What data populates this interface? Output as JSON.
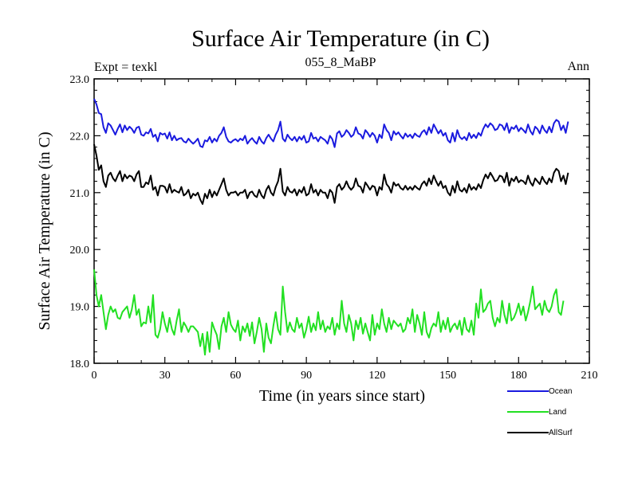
{
  "chart_data": {
    "type": "line",
    "title": "Surface Air Temperature (in C)",
    "subtitle": "055_8_MaBP",
    "left_label": "Expt = texkl",
    "right_label": "Ann",
    "xlabel": "Time (in years since start)",
    "ylabel": "Surface Air Temperature (in C)",
    "xlim": [
      0,
      210
    ],
    "ylim": [
      18.0,
      23.0
    ],
    "xticks": [
      0,
      30,
      60,
      90,
      120,
      150,
      180,
      210
    ],
    "yticks": [
      18.0,
      19.0,
      20.0,
      21.0,
      22.0,
      23.0
    ],
    "xtick_labels": [
      "0",
      "30",
      "60",
      "90",
      "120",
      "150",
      "180",
      "210"
    ],
    "ytick_labels": [
      "18.0",
      "19.0",
      "20.0",
      "21.0",
      "22.0",
      "23.0"
    ],
    "series": [
      {
        "name": "Ocean",
        "color": "#1a1adf",
        "x_start": 0,
        "x_step": 1,
        "values": [
          22.65,
          22.55,
          22.4,
          22.38,
          22.15,
          22.05,
          22.22,
          22.18,
          22.1,
          22.02,
          22.12,
          22.2,
          22.06,
          22.18,
          22.1,
          22.16,
          22.12,
          22.05,
          22.14,
          22.16,
          22.02,
          22.0,
          22.06,
          22.04,
          22.12,
          21.98,
          22.02,
          21.9,
          22.05,
          22.02,
          22.04,
          21.95,
          22.06,
          21.92,
          22.0,
          21.92,
          21.95,
          21.96,
          21.9,
          21.88,
          21.95,
          21.9,
          21.86,
          21.9,
          21.95,
          21.82,
          21.8,
          21.92,
          21.9,
          21.98,
          21.88,
          21.95,
          21.9,
          22.0,
          22.05,
          22.15,
          21.98,
          21.9,
          21.88,
          21.92,
          21.94,
          21.9,
          21.95,
          21.92,
          22.0,
          21.86,
          21.92,
          21.96,
          21.9,
          21.86,
          21.98,
          21.9,
          21.86,
          21.96,
          22.02,
          21.95,
          21.9,
          22.02,
          22.1,
          22.25,
          21.95,
          21.9,
          22.02,
          21.96,
          21.92,
          21.98,
          21.9,
          21.98,
          21.93,
          22.0,
          21.88,
          21.9,
          22.05,
          21.95,
          21.97,
          21.9,
          21.98,
          21.95,
          21.92,
          21.86,
          22.0,
          21.94,
          21.8,
          22.04,
          22.08,
          21.98,
          22.02,
          22.1,
          22.05,
          21.98,
          22.02,
          22.15,
          22.04,
          22.02,
          21.95,
          22.1,
          22.05,
          21.98,
          22.05,
          22.0,
          21.88,
          22.02,
          21.96,
          22.2,
          22.1,
          22.05,
          21.92,
          22.08,
          22.02,
          22.06,
          22.0,
          21.95,
          22.04,
          21.98,
          22.02,
          21.96,
          22.04,
          22.0,
          21.98,
          22.06,
          22.1,
          22.02,
          22.15,
          22.05,
          22.2,
          22.12,
          22.04,
          22.1,
          22.0,
          22.05,
          21.92,
          21.88,
          22.05,
          21.9,
          22.1,
          21.98,
          21.94,
          21.98,
          21.92,
          22.05,
          21.96,
          22.02,
          21.96,
          22.05,
          22.0,
          22.12,
          22.2,
          22.15,
          22.22,
          22.18,
          22.1,
          22.12,
          22.2,
          22.18,
          22.1,
          22.22,
          22.05,
          22.15,
          22.12,
          22.18,
          22.08,
          22.14,
          22.1,
          22.05,
          22.2,
          22.08,
          22.02,
          22.16,
          22.12,
          22.04,
          22.18,
          22.1,
          22.05,
          22.16,
          22.06,
          22.22,
          22.28,
          22.25,
          22.1,
          22.18,
          22.05,
          22.25
        ]
      },
      {
        "name": "Land",
        "color": "#22e022",
        "x_start": 0,
        "x_step": 1,
        "values": [
          19.65,
          19.2,
          19.0,
          19.2,
          18.9,
          18.6,
          18.85,
          19.0,
          18.9,
          18.95,
          18.8,
          18.78,
          18.9,
          18.95,
          19.0,
          18.8,
          18.95,
          19.2,
          18.85,
          18.95,
          18.65,
          18.72,
          18.7,
          19.0,
          18.72,
          19.2,
          18.5,
          18.45,
          18.6,
          18.9,
          18.7,
          18.55,
          18.8,
          18.6,
          18.5,
          18.75,
          18.95,
          18.55,
          18.72,
          18.65,
          18.55,
          18.65,
          18.65,
          18.6,
          18.55,
          18.3,
          18.52,
          18.15,
          18.55,
          18.2,
          18.72,
          18.6,
          18.5,
          18.25,
          18.65,
          18.8,
          18.55,
          18.9,
          18.68,
          18.6,
          18.55,
          18.75,
          18.4,
          18.65,
          18.55,
          18.7,
          18.48,
          18.72,
          18.35,
          18.55,
          18.8,
          18.6,
          18.2,
          18.7,
          18.45,
          18.35,
          18.65,
          18.9,
          18.6,
          18.5,
          19.35,
          18.9,
          18.55,
          18.72,
          18.6,
          18.55,
          18.8,
          18.62,
          18.7,
          18.45,
          18.6,
          18.82,
          18.55,
          18.7,
          18.58,
          18.9,
          18.6,
          18.75,
          18.55,
          18.65,
          18.6,
          18.8,
          18.5,
          18.7,
          18.6,
          19.1,
          18.7,
          18.55,
          18.85,
          18.7,
          18.4,
          18.75,
          18.6,
          18.8,
          18.52,
          18.7,
          18.55,
          18.4,
          18.85,
          18.5,
          18.7,
          18.6,
          18.95,
          18.7,
          18.55,
          18.8,
          18.6,
          18.75,
          18.7,
          18.65,
          18.7,
          18.55,
          18.6,
          18.8,
          18.7,
          18.95,
          18.55,
          18.85,
          18.7,
          18.5,
          18.9,
          18.55,
          18.45,
          18.62,
          18.7,
          18.65,
          18.9,
          18.55,
          18.75,
          18.6,
          18.8,
          18.55,
          18.65,
          18.7,
          18.6,
          18.75,
          18.5,
          18.8,
          18.6,
          18.55,
          18.75,
          18.5,
          19.05,
          18.8,
          19.3,
          18.9,
          18.95,
          19.05,
          19.1,
          18.8,
          18.65,
          18.8,
          18.72,
          19.1,
          18.85,
          18.7,
          19.05,
          18.75,
          18.8,
          18.9,
          19.05,
          18.85,
          19.0,
          18.75,
          18.9,
          19.1,
          19.35,
          18.95,
          19.0,
          19.05,
          18.85,
          19.1,
          18.95,
          18.9,
          19.0,
          19.2,
          19.3,
          18.9,
          18.85,
          19.1
        ]
      },
      {
        "name": "AllSurf",
        "color": "#000000",
        "x_start": 0,
        "x_step": 1,
        "values": [
          21.85,
          21.65,
          21.4,
          21.48,
          21.2,
          21.1,
          21.3,
          21.35,
          21.25,
          21.2,
          21.3,
          21.38,
          21.2,
          21.32,
          21.25,
          21.3,
          21.28,
          21.2,
          21.32,
          21.38,
          21.1,
          21.1,
          21.18,
          21.15,
          21.3,
          21.05,
          21.1,
          20.95,
          21.12,
          21.12,
          21.1,
          21.0,
          21.15,
          21.0,
          21.05,
          21.02,
          21.0,
          21.1,
          20.95,
          20.98,
          21.05,
          20.9,
          20.98,
          20.95,
          21.0,
          20.88,
          20.8,
          20.98,
          20.9,
          21.05,
          20.92,
          21.02,
          20.95,
          21.05,
          21.15,
          21.25,
          21.05,
          20.95,
          21.0,
          21.0,
          21.02,
          20.95,
          21.0,
          21.0,
          21.05,
          20.9,
          21.0,
          21.02,
          20.95,
          20.92,
          21.05,
          20.95,
          20.9,
          21.05,
          21.12,
          21.0,
          20.95,
          21.1,
          21.2,
          21.42,
          21.02,
          20.95,
          21.1,
          21.02,
          21.0,
          21.06,
          20.95,
          21.05,
          21.0,
          21.1,
          20.95,
          20.98,
          21.15,
          21.0,
          21.05,
          20.95,
          21.05,
          21.0,
          21.0,
          20.9,
          21.05,
          21.0,
          20.82,
          21.1,
          21.15,
          21.05,
          21.1,
          21.2,
          21.1,
          21.05,
          21.1,
          21.25,
          21.12,
          21.1,
          21.0,
          21.18,
          21.12,
          21.05,
          21.12,
          21.1,
          20.95,
          21.1,
          21.05,
          21.32,
          21.15,
          21.1,
          21.0,
          21.18,
          21.12,
          21.15,
          21.08,
          21.05,
          21.12,
          21.05,
          21.1,
          21.05,
          21.12,
          21.08,
          21.05,
          21.15,
          21.2,
          21.12,
          21.25,
          21.15,
          21.3,
          21.2,
          21.12,
          21.2,
          21.08,
          21.12,
          21.0,
          20.95,
          21.12,
          21.0,
          21.2,
          21.05,
          21.02,
          21.08,
          21.0,
          21.15,
          21.05,
          21.1,
          21.05,
          21.15,
          21.08,
          21.22,
          21.32,
          21.25,
          21.35,
          21.28,
          21.2,
          21.22,
          21.3,
          21.28,
          21.18,
          21.35,
          21.12,
          21.25,
          21.2,
          21.28,
          21.18,
          21.22,
          21.2,
          21.15,
          21.3,
          21.18,
          21.12,
          21.25,
          21.2,
          21.15,
          21.28,
          21.2,
          21.15,
          21.25,
          21.18,
          21.35,
          21.42,
          21.38,
          21.2,
          21.3,
          21.15,
          21.35
        ]
      }
    ]
  }
}
